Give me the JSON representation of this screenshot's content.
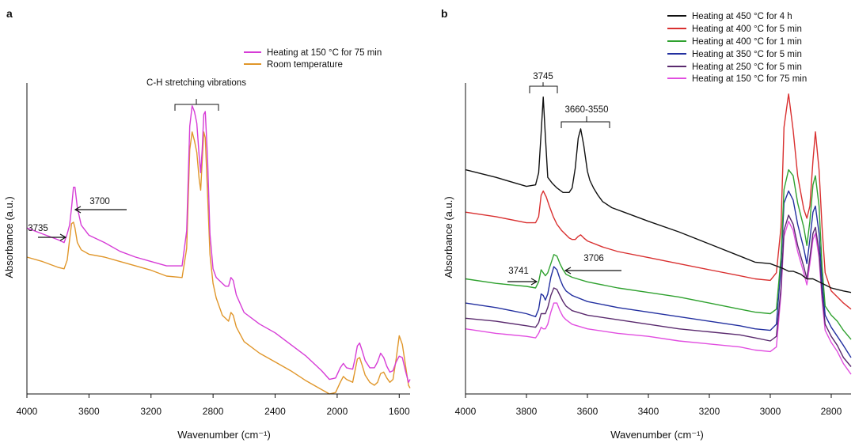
{
  "chart_data": [
    {
      "panel": "a",
      "type": "line",
      "xlabel": "Wavenumber (cm⁻¹)",
      "ylabel": "Absorbance (a.u.)",
      "xlim": [
        4000,
        1530
      ],
      "xticks": [
        4000,
        3600,
        3200,
        2800,
        2400,
        2000,
        1600
      ],
      "legend_position": "top-right",
      "series": [
        {
          "name": "Heating at 150 °C for 75 min",
          "color": "#d63cd6",
          "x": [
            4000,
            3900,
            3800,
            3760,
            3740,
            3725,
            3712,
            3700,
            3690,
            3675,
            3650,
            3600,
            3500,
            3400,
            3300,
            3200,
            3100,
            3000,
            2970,
            2950,
            2935,
            2920,
            2905,
            2890,
            2880,
            2870,
            2860,
            2850,
            2835,
            2820,
            2800,
            2780,
            2760,
            2740,
            2720,
            2700,
            2685,
            2670,
            2650,
            2600,
            2500,
            2400,
            2300,
            2200,
            2100,
            2050,
            2010,
            1980,
            1960,
            1940,
            1900,
            1885,
            1870,
            1855,
            1840,
            1820,
            1790,
            1760,
            1740,
            1720,
            1700,
            1680,
            1660,
            1640,
            1620,
            1600,
            1580,
            1560,
            1540,
            1530
          ],
          "y": [
            0.57,
            0.55,
            0.53,
            0.52,
            0.55,
            0.58,
            0.64,
            0.71,
            0.71,
            0.64,
            0.58,
            0.545,
            0.52,
            0.49,
            0.47,
            0.455,
            0.44,
            0.44,
            0.56,
            0.92,
            0.99,
            0.97,
            0.93,
            0.82,
            0.76,
            0.84,
            0.96,
            0.97,
            0.8,
            0.55,
            0.43,
            0.4,
            0.39,
            0.38,
            0.37,
            0.37,
            0.4,
            0.39,
            0.34,
            0.28,
            0.24,
            0.21,
            0.17,
            0.13,
            0.08,
            0.05,
            0.055,
            0.09,
            0.105,
            0.09,
            0.085,
            0.12,
            0.165,
            0.175,
            0.15,
            0.115,
            0.09,
            0.09,
            0.11,
            0.14,
            0.125,
            0.095,
            0.075,
            0.08,
            0.11,
            0.13,
            0.125,
            0.08,
            0.04,
            0.05
          ]
        },
        {
          "name": "Room temperature",
          "color": "#e0962a",
          "x": [
            4000,
            3900,
            3800,
            3760,
            3740,
            3725,
            3712,
            3700,
            3690,
            3675,
            3650,
            3600,
            3500,
            3400,
            3300,
            3200,
            3100,
            3000,
            2970,
            2950,
            2935,
            2920,
            2905,
            2890,
            2880,
            2870,
            2860,
            2850,
            2835,
            2820,
            2800,
            2780,
            2760,
            2740,
            2720,
            2700,
            2685,
            2670,
            2650,
            2600,
            2500,
            2400,
            2300,
            2200,
            2100,
            2050,
            2010,
            1980,
            1960,
            1940,
            1900,
            1885,
            1870,
            1855,
            1840,
            1820,
            1790,
            1760,
            1740,
            1720,
            1700,
            1680,
            1660,
            1640,
            1620,
            1600,
            1580,
            1560,
            1540,
            1530
          ],
          "y": [
            0.47,
            0.455,
            0.435,
            0.43,
            0.46,
            0.53,
            0.585,
            0.59,
            0.57,
            0.52,
            0.495,
            0.48,
            0.47,
            0.455,
            0.44,
            0.425,
            0.405,
            0.4,
            0.5,
            0.84,
            0.9,
            0.87,
            0.83,
            0.74,
            0.7,
            0.8,
            0.9,
            0.88,
            0.68,
            0.48,
            0.38,
            0.33,
            0.3,
            0.27,
            0.26,
            0.25,
            0.28,
            0.27,
            0.23,
            0.18,
            0.14,
            0.11,
            0.08,
            0.045,
            0.015,
            0.0,
            0.005,
            0.04,
            0.06,
            0.05,
            0.04,
            0.08,
            0.12,
            0.125,
            0.1,
            0.065,
            0.04,
            0.03,
            0.04,
            0.07,
            0.075,
            0.055,
            0.04,
            0.05,
            0.12,
            0.2,
            0.17,
            0.1,
            0.03,
            0.02
          ]
        }
      ],
      "annotations": [
        {
          "label": "C-H stretching vibrations",
          "type": "bracket",
          "x_from": 3040,
          "x_to": 2755
        },
        {
          "label": "3735",
          "type": "arrow-right",
          "x": 3735
        },
        {
          "label": "3700",
          "type": "arrow-left",
          "x": 3700
        }
      ]
    },
    {
      "panel": "b",
      "type": "line",
      "xlabel": "Wavenumber (cm⁻¹)",
      "ylabel": "Absorbance (a.u.)",
      "xlim": [
        4000,
        2735
      ],
      "xticks": [
        4000,
        3800,
        3600,
        3400,
        3200,
        3000,
        2800
      ],
      "legend_position": "top-right",
      "series": [
        {
          "name": "Heating at 450 °C for 4 h",
          "color": "#111111",
          "x": [
            4000,
            3900,
            3800,
            3770,
            3760,
            3752,
            3745,
            3738,
            3730,
            3715,
            3700,
            3680,
            3660,
            3650,
            3640,
            3630,
            3622,
            3612,
            3600,
            3592,
            3580,
            3565,
            3550,
            3520,
            3480,
            3400,
            3300,
            3200,
            3100,
            3050,
            3000,
            2960,
            2940,
            2925,
            2900,
            2880,
            2860,
            2840,
            2820,
            2800,
            2780,
            2760,
            2735
          ],
          "y": [
            0.74,
            0.715,
            0.685,
            0.69,
            0.73,
            0.86,
            0.98,
            0.85,
            0.715,
            0.695,
            0.68,
            0.665,
            0.665,
            0.68,
            0.745,
            0.845,
            0.875,
            0.82,
            0.735,
            0.705,
            0.68,
            0.655,
            0.635,
            0.615,
            0.6,
            0.57,
            0.535,
            0.495,
            0.455,
            0.435,
            0.43,
            0.415,
            0.405,
            0.405,
            0.395,
            0.38,
            0.38,
            0.37,
            0.36,
            0.35,
            0.345,
            0.34,
            0.335
          ]
        },
        {
          "name": "Heating at 400 °C for 5 min",
          "color": "#d93030",
          "x": [
            4000,
            3900,
            3800,
            3770,
            3760,
            3752,
            3745,
            3735,
            3725,
            3712,
            3700,
            3685,
            3670,
            3660,
            3650,
            3640,
            3630,
            3622,
            3612,
            3600,
            3550,
            3500,
            3400,
            3300,
            3200,
            3100,
            3050,
            3000,
            2980,
            2965,
            2955,
            2940,
            2925,
            2910,
            2890,
            2880,
            2870,
            2860,
            2852,
            2840,
            2830,
            2820,
            2800,
            2780,
            2760,
            2735
          ],
          "y": [
            0.6,
            0.585,
            0.565,
            0.565,
            0.585,
            0.655,
            0.67,
            0.65,
            0.62,
            0.585,
            0.56,
            0.54,
            0.525,
            0.515,
            0.51,
            0.51,
            0.52,
            0.525,
            0.515,
            0.505,
            0.485,
            0.47,
            0.45,
            0.43,
            0.41,
            0.39,
            0.38,
            0.375,
            0.4,
            0.55,
            0.88,
            0.99,
            0.87,
            0.72,
            0.61,
            0.58,
            0.62,
            0.77,
            0.865,
            0.74,
            0.55,
            0.4,
            0.34,
            0.32,
            0.3,
            0.28
          ]
        },
        {
          "name": "Heating at 400 °C for 1 min",
          "color": "#2fa12f",
          "x": [
            4000,
            3900,
            3800,
            3770,
            3760,
            3752,
            3745,
            3738,
            3730,
            3720,
            3710,
            3700,
            3690,
            3680,
            3670,
            3650,
            3600,
            3500,
            3400,
            3300,
            3200,
            3100,
            3050,
            3000,
            2980,
            2965,
            2955,
            2940,
            2925,
            2910,
            2890,
            2880,
            2870,
            2860,
            2852,
            2840,
            2830,
            2820,
            2800,
            2780,
            2760,
            2735
          ],
          "y": [
            0.38,
            0.365,
            0.355,
            0.35,
            0.37,
            0.41,
            0.4,
            0.39,
            0.4,
            0.43,
            0.46,
            0.455,
            0.43,
            0.41,
            0.395,
            0.385,
            0.37,
            0.35,
            0.335,
            0.32,
            0.3,
            0.28,
            0.27,
            0.265,
            0.28,
            0.45,
            0.675,
            0.74,
            0.72,
            0.63,
            0.55,
            0.49,
            0.57,
            0.69,
            0.72,
            0.62,
            0.42,
            0.29,
            0.26,
            0.24,
            0.21,
            0.18
          ]
        },
        {
          "name": "Heating at 350 °C for 5 min",
          "color": "#2330a0",
          "x": [
            4000,
            3900,
            3800,
            3770,
            3760,
            3752,
            3745,
            3738,
            3730,
            3720,
            3710,
            3700,
            3690,
            3680,
            3670,
            3650,
            3600,
            3500,
            3400,
            3300,
            3200,
            3100,
            3050,
            3000,
            2980,
            2965,
            2955,
            2940,
            2925,
            2910,
            2890,
            2880,
            2870,
            2860,
            2852,
            2840,
            2830,
            2820,
            2800,
            2780,
            2760,
            2735
          ],
          "y": [
            0.3,
            0.285,
            0.265,
            0.255,
            0.28,
            0.33,
            0.325,
            0.31,
            0.33,
            0.385,
            0.42,
            0.41,
            0.38,
            0.355,
            0.34,
            0.325,
            0.305,
            0.285,
            0.27,
            0.255,
            0.24,
            0.225,
            0.215,
            0.21,
            0.23,
            0.42,
            0.63,
            0.67,
            0.64,
            0.56,
            0.48,
            0.43,
            0.51,
            0.6,
            0.62,
            0.53,
            0.37,
            0.26,
            0.22,
            0.19,
            0.16,
            0.12
          ]
        },
        {
          "name": "Heating at 250 °C for 5 min",
          "color": "#5a2a6e",
          "x": [
            4000,
            3900,
            3800,
            3770,
            3760,
            3752,
            3745,
            3738,
            3730,
            3720,
            3710,
            3700,
            3690,
            3680,
            3670,
            3650,
            3600,
            3500,
            3400,
            3300,
            3200,
            3100,
            3050,
            3000,
            2980,
            2965,
            2955,
            2940,
            2925,
            2910,
            2890,
            2880,
            2870,
            2860,
            2852,
            2840,
            2830,
            2820,
            2800,
            2780,
            2760,
            2735
          ],
          "y": [
            0.25,
            0.24,
            0.225,
            0.22,
            0.235,
            0.265,
            0.265,
            0.265,
            0.285,
            0.325,
            0.35,
            0.345,
            0.325,
            0.305,
            0.29,
            0.275,
            0.26,
            0.245,
            0.23,
            0.215,
            0.205,
            0.195,
            0.185,
            0.175,
            0.19,
            0.35,
            0.54,
            0.59,
            0.56,
            0.49,
            0.42,
            0.38,
            0.45,
            0.53,
            0.55,
            0.47,
            0.33,
            0.23,
            0.19,
            0.16,
            0.12,
            0.09
          ]
        },
        {
          "name": "Heating at 150 °C for 75 min",
          "color": "#e14ee0",
          "x": [
            4000,
            3900,
            3800,
            3770,
            3760,
            3752,
            3745,
            3738,
            3730,
            3720,
            3710,
            3700,
            3690,
            3680,
            3670,
            3650,
            3600,
            3500,
            3400,
            3300,
            3200,
            3100,
            3050,
            3000,
            2980,
            2965,
            2955,
            2940,
            2925,
            2910,
            2890,
            2880,
            2870,
            2860,
            2852,
            2840,
            2830,
            2820,
            2800,
            2780,
            2760,
            2735
          ],
          "y": [
            0.215,
            0.2,
            0.19,
            0.185,
            0.2,
            0.22,
            0.215,
            0.215,
            0.23,
            0.27,
            0.3,
            0.3,
            0.275,
            0.255,
            0.245,
            0.23,
            0.215,
            0.2,
            0.19,
            0.175,
            0.165,
            0.155,
            0.145,
            0.14,
            0.155,
            0.33,
            0.52,
            0.57,
            0.54,
            0.47,
            0.4,
            0.36,
            0.43,
            0.51,
            0.53,
            0.45,
            0.31,
            0.21,
            0.17,
            0.14,
            0.1,
            0.065
          ]
        }
      ],
      "annotations": [
        {
          "label": "3745",
          "type": "bracket",
          "x_from": 3775,
          "x_to": 3715
        },
        {
          "label": "3660-3550",
          "type": "bracket",
          "x_from": 3685,
          "x_to": 3535
        },
        {
          "label": "3741",
          "type": "arrow-right",
          "x": 3741
        },
        {
          "label": "3706",
          "type": "arrow-left",
          "x": 3706
        }
      ]
    }
  ]
}
